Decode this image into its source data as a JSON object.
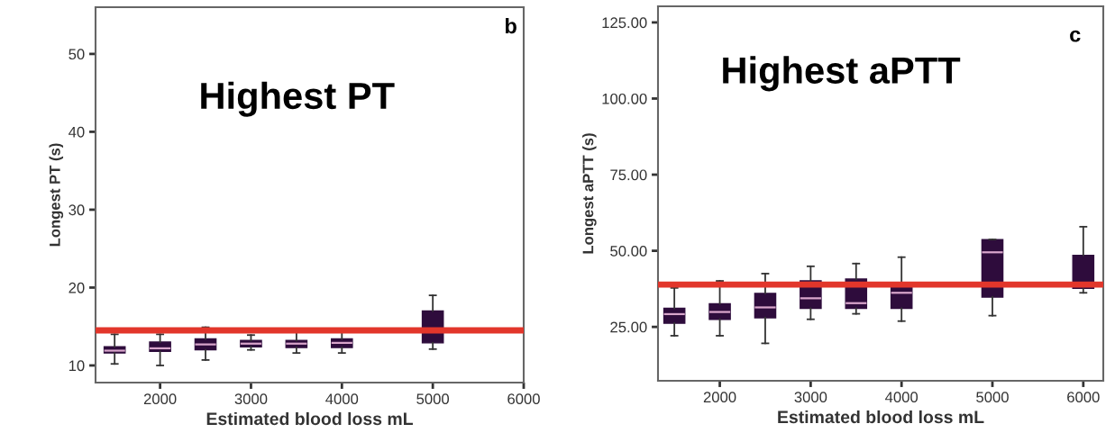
{
  "chart_data": [
    {
      "type": "box",
      "xlabel": "Estimated blood loss mL",
      "ylabel": "Longest PT (s)",
      "annotations": [
        "Highest PT",
        "b"
      ],
      "x": [
        1500,
        2000,
        2500,
        3000,
        3500,
        4000,
        5000
      ],
      "xlim": [
        1290,
        6000
      ],
      "xticks": [
        2000,
        3000,
        4000,
        5000,
        6000
      ],
      "ylim": [
        7.8,
        56
      ],
      "yticks": [
        10,
        20,
        30,
        40,
        50
      ],
      "color": "#2e0c3c",
      "boxes": [
        {
          "low": 10.2,
          "q1": 11.6,
          "median": 11.9,
          "q3": 12.4,
          "high": 14.0
        },
        {
          "low": 10.0,
          "q1": 11.8,
          "median": 12.2,
          "q3": 13.0,
          "high": 14.0
        },
        {
          "low": 10.7,
          "q1": 12.0,
          "median": 12.7,
          "q3": 13.4,
          "high": 14.9
        },
        {
          "low": 12.0,
          "q1": 12.4,
          "median": 12.8,
          "q3": 13.2,
          "high": 13.9
        },
        {
          "low": 11.6,
          "q1": 12.3,
          "median": 12.8,
          "q3": 13.2,
          "high": 14.7
        },
        {
          "low": 11.6,
          "q1": 12.3,
          "median": 12.9,
          "q3": 13.4,
          "high": 14.7
        },
        {
          "low": 12.1,
          "q1": 12.9,
          "median": 14.4,
          "q3": 17.0,
          "high": 19.0
        }
      ],
      "ref_lines": [
        {
          "axis": "y",
          "value": 14.5,
          "color": "#e2362b"
        }
      ],
      "grid": false
    },
    {
      "type": "box",
      "xlabel": "Estimated blood loss mL",
      "ylabel": "Longest aPTT (s)",
      "annotations": [
        "Highest aPTT",
        "c"
      ],
      "x": [
        1500,
        2000,
        2500,
        3000,
        3500,
        4000,
        5000,
        6000
      ],
      "xlim": [
        1320,
        6220
      ],
      "xticks": [
        2000,
        3000,
        4000,
        5000,
        6000
      ],
      "ylim": [
        7.3,
        130.3
      ],
      "yticks": [
        {
          "value": 25,
          "label": "25.00"
        },
        {
          "value": 50,
          "label": "50.00"
        },
        {
          "value": 75,
          "label": "75.00"
        },
        {
          "value": 100,
          "label": "100.00"
        },
        {
          "value": 125,
          "label": "125.00"
        }
      ],
      "color": "#2e0c3c",
      "boxes": [
        {
          "low": 22.1,
          "q1": 26.2,
          "median": 29.2,
          "q3": 31.1,
          "high": 37.8
        },
        {
          "low": 22.1,
          "q1": 27.5,
          "median": 29.9,
          "q3": 32.6,
          "high": 40.1
        },
        {
          "low": 19.6,
          "q1": 28.0,
          "median": 31.4,
          "q3": 36.0,
          "high": 42.5
        },
        {
          "low": 27.5,
          "q1": 31.1,
          "median": 34.4,
          "q3": 40.1,
          "high": 44.9
        },
        {
          "low": 29.3,
          "q1": 31.1,
          "median": 32.8,
          "q3": 40.7,
          "high": 45.8
        },
        {
          "low": 26.9,
          "q1": 31.1,
          "median": 36.2,
          "q3": 38.9,
          "high": 47.9
        },
        {
          "low": 28.7,
          "q1": 34.8,
          "median": 49.5,
          "q3": 53.7,
          "high": 53.7
        },
        {
          "low": 36.2,
          "q1": 37.7,
          "median": 38.5,
          "q3": 48.5,
          "high": 57.9
        }
      ],
      "ref_lines": [
        {
          "axis": "y",
          "value": 38.9,
          "color": "#e2362b"
        }
      ],
      "grid": false
    }
  ]
}
